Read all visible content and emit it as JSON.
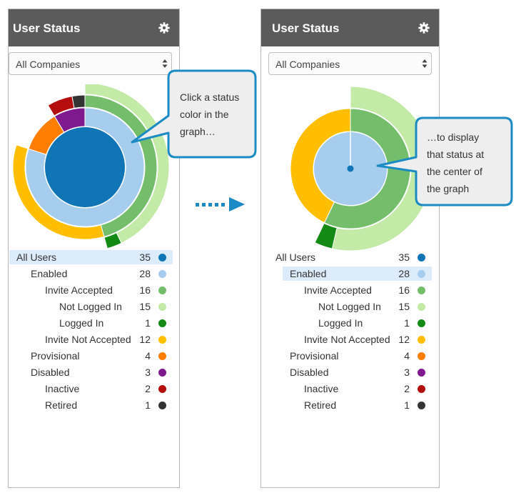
{
  "panels": {
    "left": {
      "title": "User Status",
      "company_select": "All Companies",
      "callout": [
        "Click a status",
        "color in the",
        "graph…"
      ]
    },
    "right": {
      "title": "User Status",
      "company_select": "All Companies",
      "callout": [
        "…to display",
        "that status at",
        "the center of",
        "the graph"
      ]
    }
  },
  "status_list": [
    {
      "label": "All Users",
      "count": "35",
      "color": "#0f75b6",
      "level": 0
    },
    {
      "label": "Enabled",
      "count": "28",
      "color": "#a6ccee",
      "level": 1
    },
    {
      "label": "Invite Accepted",
      "count": "16",
      "color": "#74bd6b",
      "level": 2
    },
    {
      "label": "Not Logged In",
      "count": "15",
      "color": "#c3eaa6",
      "level": 3
    },
    {
      "label": "Logged In",
      "count": "1",
      "color": "#138a14",
      "level": 3
    },
    {
      "label": "Invite Not Accepted",
      "count": "12",
      "color": "#ffbf00",
      "level": 2
    },
    {
      "label": "Provisional",
      "count": "4",
      "color": "#ff7d00",
      "level": 1
    },
    {
      "label": "Disabled",
      "count": "3",
      "color": "#7e1a8d",
      "level": 1
    },
    {
      "label": "Inactive",
      "count": "2",
      "color": "#b50d0d",
      "level": 2
    },
    {
      "label": "Retired",
      "count": "1",
      "color": "#333333",
      "level": 2
    }
  ],
  "selected": {
    "left": "All Users",
    "right": "Enabled"
  },
  "colors": {
    "header_bg": "#5b5b5b",
    "callout_border": "#1b8bc4",
    "callout_bg": "#eeeeee",
    "arrow": "#1a8ac6",
    "highlight": "#ddecfb"
  }
}
